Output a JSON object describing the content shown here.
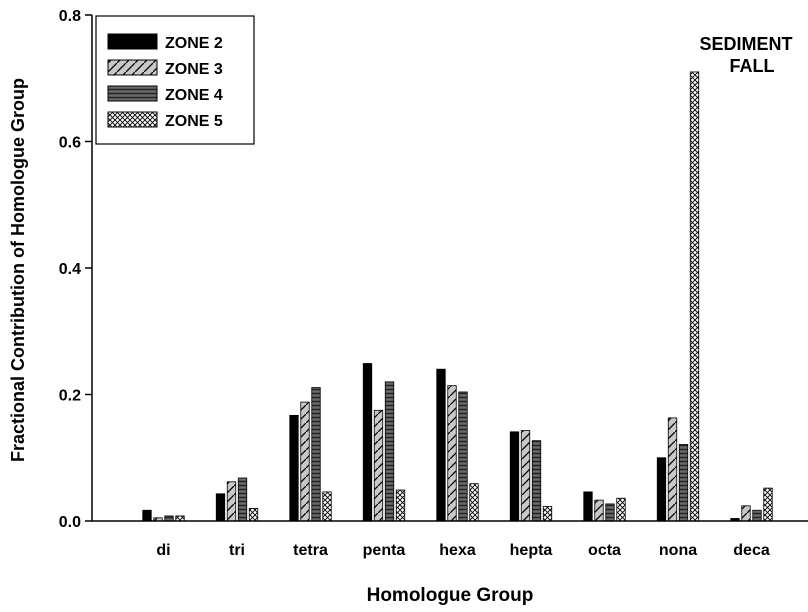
{
  "chart_data": {
    "type": "bar",
    "title": "",
    "annotation": [
      "SEDIMENT",
      "FALL"
    ],
    "xlabel": "Homologue Group",
    "ylabel": "Fractional Contribution of Homologue Group",
    "categories": [
      "di",
      "tri",
      "tetra",
      "penta",
      "hexa",
      "hepta",
      "octa",
      "nona",
      "deca"
    ],
    "ylim": [
      0,
      0.8
    ],
    "yticks": [
      0.0,
      0.2,
      0.4,
      0.6,
      0.8
    ],
    "ytick_labels": [
      "0.0",
      "0.2",
      "0.4",
      "0.6",
      "0.8"
    ],
    "grid": false,
    "legend_position": "top-left",
    "series": [
      {
        "name": "ZONE 2",
        "pattern": "solid-black",
        "values": [
          0.017,
          0.043,
          0.167,
          0.249,
          0.24,
          0.141,
          0.046,
          0.1,
          0.004
        ]
      },
      {
        "name": "ZONE 3",
        "pattern": "diagonal-light",
        "values": [
          0.005,
          0.062,
          0.188,
          0.175,
          0.214,
          0.143,
          0.033,
          0.163,
          0.024
        ]
      },
      {
        "name": "ZONE 4",
        "pattern": "horizontal-dark",
        "values": [
          0.008,
          0.068,
          0.211,
          0.22,
          0.204,
          0.127,
          0.027,
          0.121,
          0.017
        ]
      },
      {
        "name": "ZONE 5",
        "pattern": "crosshatch",
        "values": [
          0.008,
          0.02,
          0.046,
          0.049,
          0.059,
          0.023,
          0.036,
          0.71,
          0.052
        ]
      }
    ]
  }
}
